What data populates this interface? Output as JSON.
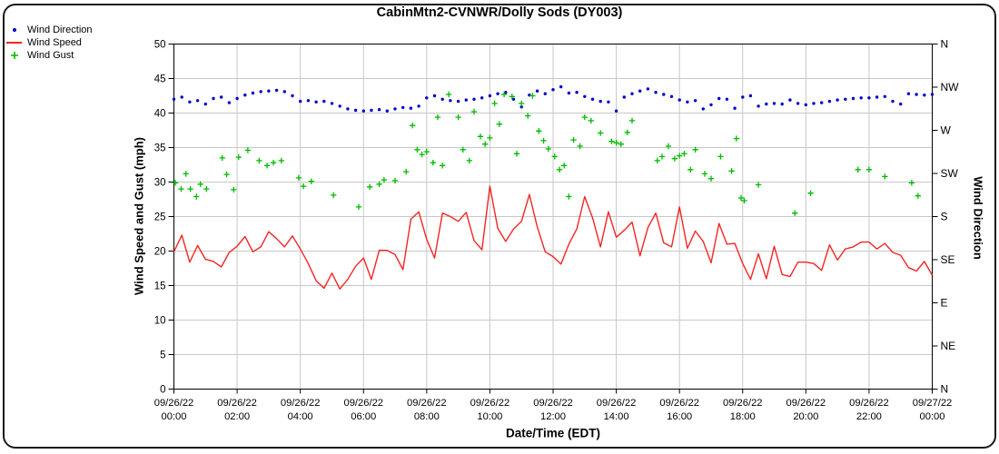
{
  "window": {
    "background": "#ffffff",
    "border_color": "#1a1a1a"
  },
  "chart_data": {
    "type": "line+scatter",
    "title": "CabinMtn2-CVNWR/Dolly Sods (DY003)",
    "xlabel": "Date/Time (EDT)",
    "ylabel_left": "Wind Speed and Gust (mph)",
    "ylabel_right": "Wind Direction",
    "ylim_left": [
      0,
      50
    ],
    "yticks_left": [
      0,
      5,
      10,
      15,
      20,
      25,
      30,
      35,
      40,
      45,
      50
    ],
    "right_axis_labels_top_to_bottom": [
      "N",
      "NW",
      "W",
      "SW",
      "S",
      "SE",
      "E",
      "NE",
      "N"
    ],
    "x_hours_range": [
      0,
      24
    ],
    "x_tick_step_hours": 2,
    "x_ticks": [
      {
        "date": "09/26/22",
        "time": "00:00"
      },
      {
        "date": "09/26/22",
        "time": "02:00"
      },
      {
        "date": "09/26/22",
        "time": "04:00"
      },
      {
        "date": "09/26/22",
        "time": "06:00"
      },
      {
        "date": "09/26/22",
        "time": "08:00"
      },
      {
        "date": "09/26/22",
        "time": "10:00"
      },
      {
        "date": "09/26/22",
        "time": "12:00"
      },
      {
        "date": "09/26/22",
        "time": "14:00"
      },
      {
        "date": "09/26/22",
        "time": "16:00"
      },
      {
        "date": "09/26/22",
        "time": "18:00"
      },
      {
        "date": "09/26/22",
        "time": "20:00"
      },
      {
        "date": "09/26/22",
        "time": "22:00"
      },
      {
        "date": "09/27/22",
        "time": "00:00"
      }
    ],
    "grid": true,
    "grid_color": "#c8c8c8",
    "axis_color": "#000000",
    "legend_position": "top-left",
    "series": [
      {
        "name": "Wind Direction",
        "type": "scatter",
        "marker": "dot",
        "color": "#0000cc",
        "plotted_on": "left_axis_scale",
        "x_start_hour": 0,
        "x_step_hours": 0.25,
        "values": [
          42.0,
          42.3,
          41.6,
          41.8,
          41.3,
          42.1,
          42.3,
          41.5,
          42.1,
          42.6,
          42.9,
          43.1,
          43.2,
          43.3,
          43.1,
          42.5,
          41.7,
          41.8,
          41.6,
          41.7,
          41.4,
          41.0,
          40.6,
          40.4,
          40.3,
          40.4,
          40.5,
          40.3,
          40.6,
          40.8,
          40.7,
          41.0,
          42.2,
          42.5,
          42.0,
          41.8,
          41.7,
          41.9,
          42.0,
          42.2,
          42.5,
          42.8,
          43.0,
          42.0,
          40.9,
          42.6,
          43.2,
          42.8,
          43.4,
          43.8,
          42.9,
          43.0,
          42.4,
          42.0,
          41.7,
          41.6,
          40.3,
          42.3,
          42.8,
          43.2,
          43.5,
          43.0,
          42.7,
          42.4,
          41.9,
          41.6,
          41.8,
          40.6,
          41.2,
          42.1,
          42.0,
          40.7,
          42.3,
          42.5,
          41.0,
          41.3,
          41.4,
          41.3,
          41.9,
          41.4,
          41.2,
          41.4,
          41.5,
          41.7,
          41.9,
          42.0,
          42.1,
          42.2,
          42.2,
          42.3,
          42.4,
          41.7,
          41.3,
          42.8,
          42.7,
          42.6,
          42.7
        ]
      },
      {
        "name": "Wind Speed",
        "type": "line",
        "marker": "none",
        "color": "#f42525",
        "x_start_hour": 0,
        "x_step_hours": 0.25,
        "values": [
          19.9,
          22.3,
          18.4,
          20.8,
          18.8,
          18.5,
          17.7,
          19.8,
          20.7,
          22.1,
          19.9,
          20.6,
          22.8,
          21.8,
          20.6,
          22.2,
          20.3,
          18.2,
          15.7,
          14.6,
          16.8,
          14.5,
          15.9,
          17.8,
          19.0,
          15.9,
          20.1,
          20.1,
          19.5,
          17.3,
          24.6,
          25.7,
          21.7,
          19.0,
          25.5,
          25.0,
          24.3,
          25.6,
          21.5,
          20.2,
          29.4,
          23.3,
          21.4,
          23.2,
          24.3,
          28.2,
          23.5,
          19.9,
          19.2,
          18.1,
          21.0,
          23.2,
          27.9,
          24.8,
          20.6,
          25.7,
          22.0,
          23.0,
          24.2,
          19.3,
          23.4,
          25.5,
          21.2,
          20.6,
          26.4,
          20.4,
          22.9,
          21.4,
          18.3,
          24.0,
          21.0,
          21.1,
          18.2,
          15.9,
          19.6,
          16.0,
          20.7,
          16.6,
          16.3,
          18.4,
          18.4,
          18.2,
          17.2,
          20.9,
          18.7,
          20.3,
          20.6,
          21.3,
          21.3,
          20.3,
          21.1,
          19.8,
          19.4,
          17.6,
          17.1,
          18.5,
          16.5
        ]
      },
      {
        "name": "Wind Gust",
        "type": "scatter",
        "marker": "plus",
        "color": "#00bb00",
        "points": [
          [
            0.05,
            29.9
          ],
          [
            0.23,
            29.0
          ],
          [
            0.38,
            31.2
          ],
          [
            0.52,
            29.0
          ],
          [
            0.71,
            27.9
          ],
          [
            0.84,
            29.7
          ],
          [
            1.03,
            29.0
          ],
          [
            1.53,
            33.5
          ],
          [
            1.67,
            31.1
          ],
          [
            1.89,
            28.9
          ],
          [
            2.05,
            33.6
          ],
          [
            2.34,
            34.6
          ],
          [
            2.7,
            33.1
          ],
          [
            2.95,
            32.4
          ],
          [
            3.15,
            32.8
          ],
          [
            3.4,
            33.1
          ],
          [
            3.95,
            30.6
          ],
          [
            4.1,
            29.4
          ],
          [
            4.35,
            30.1
          ],
          [
            5.05,
            28.1
          ],
          [
            5.85,
            26.4
          ],
          [
            6.2,
            29.3
          ],
          [
            6.5,
            29.7
          ],
          [
            6.65,
            30.3
          ],
          [
            7.0,
            30.2
          ],
          [
            7.35,
            31.5
          ],
          [
            7.55,
            38.2
          ],
          [
            7.7,
            34.7
          ],
          [
            7.85,
            34.0
          ],
          [
            8.0,
            34.4
          ],
          [
            8.2,
            32.8
          ],
          [
            8.35,
            39.4
          ],
          [
            8.5,
            32.4
          ],
          [
            8.7,
            42.7
          ],
          [
            9.0,
            39.4
          ],
          [
            9.15,
            34.7
          ],
          [
            9.35,
            33.1
          ],
          [
            9.5,
            40.2
          ],
          [
            9.7,
            36.6
          ],
          [
            9.85,
            35.5
          ],
          [
            10.0,
            36.4
          ],
          [
            10.15,
            41.4
          ],
          [
            10.3,
            38.4
          ],
          [
            10.45,
            42.7
          ],
          [
            10.7,
            42.4
          ],
          [
            10.85,
            34.1
          ],
          [
            11.0,
            41.4
          ],
          [
            11.2,
            39.6
          ],
          [
            11.35,
            42.5
          ],
          [
            11.55,
            37.4
          ],
          [
            11.7,
            36.0
          ],
          [
            11.85,
            34.8
          ],
          [
            12.05,
            33.7
          ],
          [
            12.2,
            31.8
          ],
          [
            12.35,
            32.4
          ],
          [
            12.5,
            27.9
          ],
          [
            12.65,
            36.1
          ],
          [
            12.85,
            35.2
          ],
          [
            13.0,
            39.4
          ],
          [
            13.2,
            38.9
          ],
          [
            13.5,
            37.1
          ],
          [
            13.85,
            35.9
          ],
          [
            14.0,
            35.7
          ],
          [
            14.15,
            35.5
          ],
          [
            14.35,
            37.2
          ],
          [
            14.5,
            38.9
          ],
          [
            15.3,
            33.1
          ],
          [
            15.45,
            33.7
          ],
          [
            15.65,
            35.2
          ],
          [
            15.85,
            33.4
          ],
          [
            16.0,
            33.8
          ],
          [
            16.15,
            34.1
          ],
          [
            16.35,
            31.8
          ],
          [
            16.5,
            34.7
          ],
          [
            16.8,
            31.2
          ],
          [
            17.0,
            30.5
          ],
          [
            17.3,
            33.7
          ],
          [
            17.65,
            31.6
          ],
          [
            17.8,
            36.3
          ],
          [
            17.95,
            27.7
          ],
          [
            18.05,
            27.3
          ],
          [
            18.5,
            29.6
          ],
          [
            19.65,
            25.5
          ],
          [
            20.15,
            28.4
          ],
          [
            21.65,
            31.8
          ],
          [
            22.0,
            31.8
          ],
          [
            22.5,
            30.8
          ],
          [
            23.35,
            29.9
          ],
          [
            23.55,
            28.0
          ]
        ]
      }
    ]
  }
}
